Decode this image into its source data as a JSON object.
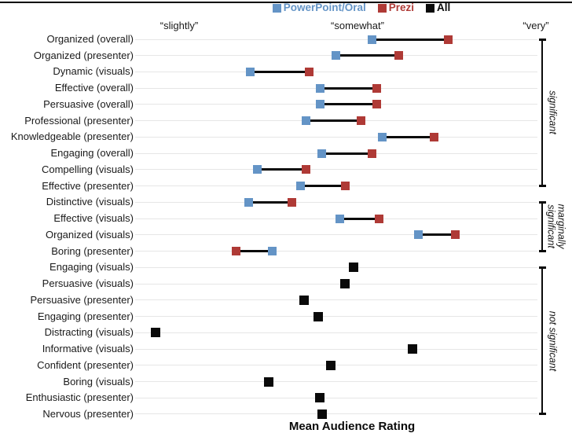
{
  "colors": {
    "powerpoint": "#6494C6",
    "prezi": "#AF3A36",
    "all": "#0a0a0a",
    "gridline": "#e6e6e6",
    "connector": "#0a0a0a"
  },
  "legend": {
    "items": [
      {
        "label": "PowerPoint/Oral",
        "color": "#6494C6"
      },
      {
        "label": "Prezi",
        "color": "#AF3A36"
      },
      {
        "label": "All",
        "color": "#0a0a0a"
      }
    ]
  },
  "axis": {
    "tick_labels": [
      "“slightly”",
      "“somewhat”",
      "“very”"
    ],
    "tick_values": [
      2,
      3,
      4
    ],
    "title": "Mean Audience Rating",
    "xlim": [
      1.75,
      4.02
    ],
    "grid": "horizontal-per-row"
  },
  "chart_data": {
    "type": "scatter",
    "subtype": "dumbbell-dot-plot",
    "title": "",
    "xlabel": "Mean Audience Rating",
    "x_tick_labels": [
      "“slightly”",
      "“somewhat”",
      "“very”"
    ],
    "x_tick_values": [
      2,
      3,
      4
    ],
    "xlim": [
      1.75,
      4.02
    ],
    "legend_position": "top-center",
    "categories": [
      "Organized (overall)",
      "Organized (presenter)",
      "Dynamic (visuals)",
      "Effective (overall)",
      "Persuasive (overall)",
      "Professional (presenter)",
      "Knowledgeable (presenter)",
      "Engaging (overall)",
      "Compelling (visuals)",
      "Effective (presenter)",
      "Distinctive (visuals)",
      "Effective (visuals)",
      "Organized (visuals)",
      "Boring (presenter)",
      "Engaging (visuals)",
      "Persuasive (visuals)",
      "Persuasive (presenter)",
      "Engaging (presenter)",
      "Distracting (visuals)",
      "Informative (visuals)",
      "Confident (presenter)",
      "Boring (visuals)",
      "Enthusiastic (presenter)",
      "Nervous (presenter)"
    ],
    "series": [
      {
        "name": "PowerPoint/Oral",
        "color": "#6494C6",
        "values": [
          3.08,
          2.88,
          2.4,
          2.79,
          2.79,
          2.71,
          3.14,
          2.8,
          2.44,
          2.68,
          2.39,
          2.9,
          3.34,
          2.52,
          null,
          null,
          null,
          null,
          null,
          null,
          null,
          null,
          null,
          null
        ]
      },
      {
        "name": "Prezi",
        "color": "#AF3A36",
        "values": [
          3.51,
          3.23,
          2.73,
          3.11,
          3.11,
          3.02,
          3.43,
          3.08,
          2.71,
          2.93,
          2.63,
          3.12,
          3.55,
          2.32,
          null,
          null,
          null,
          null,
          null,
          null,
          null,
          null,
          null,
          null
        ]
      },
      {
        "name": "All",
        "color": "#0a0a0a",
        "values": [
          null,
          null,
          null,
          null,
          null,
          null,
          null,
          null,
          null,
          null,
          null,
          null,
          null,
          null,
          2.98,
          2.93,
          2.7,
          2.78,
          1.87,
          3.31,
          2.85,
          2.5,
          2.79,
          2.8
        ]
      }
    ],
    "significance_groups": [
      {
        "label": "significant",
        "first_row": 0,
        "last_row": 9
      },
      {
        "label": "marginally\nsignificant",
        "first_row": 10,
        "last_row": 13
      },
      {
        "label": "not significant",
        "first_row": 14,
        "last_row": 23
      }
    ]
  }
}
